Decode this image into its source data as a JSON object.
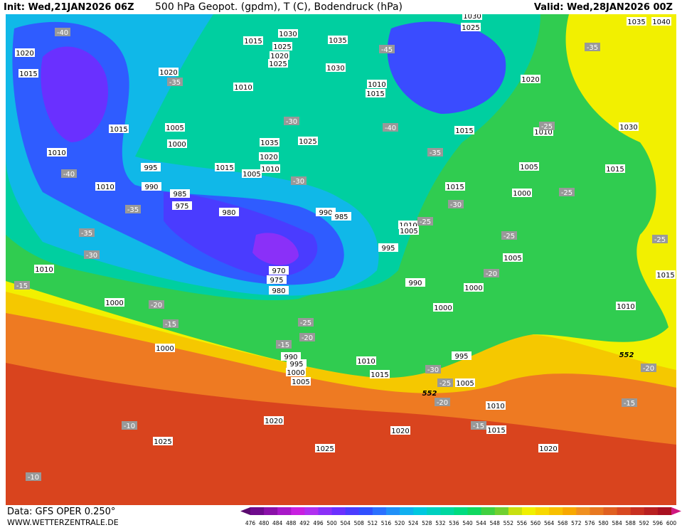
{
  "header": {
    "init": "Init: Wed,21JAN2026 06Z",
    "title": "500 hPa Geopot. (gpdm), T (C), Bodendruck (hPa)",
    "valid": "Valid: Wed,28JAN2026 00Z"
  },
  "footer": {
    "data": "Data: GFS OPER 0.250°",
    "site": "WWW.WETTERZENTRALE.DE"
  },
  "isobars": [
    "1030",
    "1015",
    "1025",
    "1020",
    "1025",
    "1030",
    "1035",
    "1020",
    "1015",
    "1020",
    "1010",
    "1015",
    "1005",
    "1000",
    "1035",
    "1025",
    "1020",
    "1015",
    "1005",
    "1010",
    "1010",
    "995",
    "990",
    "1010",
    "985",
    "975",
    "980",
    "990",
    "985",
    "970",
    "975",
    "980",
    "1010",
    "1000",
    "1000",
    "995",
    "990",
    "1010",
    "1015",
    "1005",
    "1000",
    "995",
    "990",
    "1020",
    "1025",
    "1025",
    "1020",
    "1020",
    "1015",
    "1010",
    "1005",
    "995",
    "1000",
    "1000",
    "1005",
    "1000",
    "1005",
    "1015",
    "1015",
    "1010",
    "1030",
    "1015",
    "1020",
    "1015",
    "1010",
    "1025",
    "1030",
    "1035",
    "1040",
    "1010",
    "1015",
    "1010",
    "1005"
  ],
  "isotherms": [
    "-40",
    "-35",
    "-30",
    "-30",
    "-40",
    "-45",
    "-35",
    "-35",
    "-25",
    "-25",
    "-30",
    "-25",
    "-20",
    "-25",
    "-40",
    "-35",
    "-35",
    "-30",
    "-15",
    "-20",
    "-15",
    "-25",
    "-20",
    "-15",
    "-30",
    "-25",
    "-20",
    "-15",
    "-10",
    "-10",
    "-15",
    "-20",
    "-25"
  ],
  "contour_552": [
    "552",
    "552"
  ],
  "scale": {
    "labels": [
      476,
      480,
      484,
      488,
      492,
      496,
      500,
      504,
      508,
      512,
      516,
      520,
      524,
      528,
      532,
      536,
      540,
      544,
      548,
      552,
      556,
      560,
      564,
      568,
      572,
      576,
      580,
      584,
      588,
      592,
      596,
      600
    ],
    "colors": [
      "#5a0a6e",
      "#6e0a8c",
      "#8a10a8",
      "#a818c8",
      "#c820e0",
      "#b030f0",
      "#8a30f8",
      "#6a30ff",
      "#4a3cff",
      "#3050ff",
      "#2a70ff",
      "#2090f8",
      "#10b0f0",
      "#00c8e0",
      "#00d0c0",
      "#00d8a0",
      "#00dc80",
      "#10d860",
      "#40d040",
      "#70d030",
      "#c8e010",
      "#f0f000",
      "#f8d800",
      "#f8c000",
      "#f8a800",
      "#f09020",
      "#e87820",
      "#e06020",
      "#d84820",
      "#c83020",
      "#b82020",
      "#a81020",
      "#d01880"
    ]
  }
}
